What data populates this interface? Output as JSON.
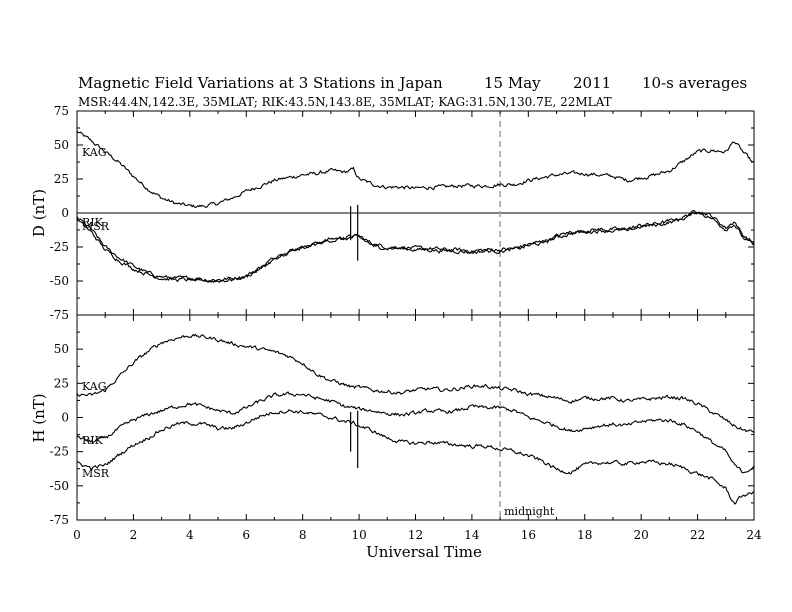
{
  "header": {
    "title": "Magnetic Field Variations at 3 Stations in Japan",
    "date": "15  May",
    "year": "2011",
    "averaging": "10-s averages",
    "subtitle": "MSR:44.4N,142.3E, 35MLAT;   RIK:43.5N,143.8E, 35MLAT;   KAG:31.5N,130.7E, 22MLAT"
  },
  "chart_data": [
    {
      "type": "line",
      "panel": "top",
      "ylabel": "D (nT)",
      "xlabel": "",
      "xlim": [
        0,
        24
      ],
      "ylim": [
        -75,
        75
      ],
      "yticks": [
        "75",
        "50",
        "25",
        "0",
        "-25",
        "-50",
        "-75"
      ],
      "zero_line": true,
      "series": [
        {
          "name": "KAG",
          "x": [
            0,
            0.5,
            1,
            1.5,
            2,
            2.5,
            3,
            3.5,
            4,
            4.5,
            5,
            5.5,
            6,
            6.5,
            7,
            7.5,
            8,
            8.5,
            9,
            9.5,
            9.8,
            10,
            10.5,
            11,
            11.5,
            12,
            12.5,
            13,
            13.5,
            14,
            14.5,
            15,
            15.5,
            16,
            16.5,
            17,
            17.5,
            18,
            18.5,
            19,
            19.5,
            20,
            20.5,
            21,
            21.5,
            22,
            22.5,
            23,
            23.3,
            23.6,
            24
          ],
          "y": [
            60,
            53,
            45,
            37,
            27,
            18,
            11,
            7,
            5,
            5,
            7,
            11,
            16,
            20,
            24,
            26,
            28,
            29,
            31,
            30,
            32,
            25,
            21,
            19,
            19,
            18,
            19,
            19,
            20,
            20,
            20,
            21,
            21,
            24,
            26,
            28,
            29,
            29,
            28,
            27,
            24,
            26,
            28,
            31,
            38,
            45,
            46,
            45,
            53,
            45,
            36
          ]
        },
        {
          "name": "RIK",
          "x": [
            0,
            0.5,
            1,
            1.5,
            2,
            2.5,
            3,
            3.5,
            4,
            4.5,
            5,
            5.5,
            6,
            6.5,
            7,
            7.5,
            8,
            8.5,
            9,
            9.5,
            9.8,
            10,
            10.5,
            11,
            11.5,
            12,
            12.5,
            13,
            13.5,
            14,
            14.5,
            15,
            15.5,
            16,
            16.5,
            17,
            17.5,
            18,
            18.5,
            19,
            19.5,
            20,
            20.5,
            21,
            21.5,
            22,
            22.5,
            23,
            23.3,
            23.6,
            24
          ],
          "y": [
            -3,
            -12,
            -25,
            -33,
            -39,
            -44,
            -47,
            -48,
            -48,
            -49,
            -49,
            -48,
            -46,
            -40,
            -33,
            -28,
            -25,
            -22,
            -19,
            -18,
            -17,
            -17,
            -23,
            -25,
            -25,
            -26,
            -26,
            -27,
            -27,
            -28,
            -27,
            -27,
            -26,
            -23,
            -21,
            -17,
            -14,
            -13,
            -12,
            -12,
            -12,
            -9,
            -8,
            -6,
            -3,
            2,
            -2,
            -11,
            -6,
            -16,
            -22
          ]
        },
        {
          "name": "MSR",
          "x": [
            0,
            0.5,
            1,
            1.5,
            2,
            2.5,
            3,
            3.5,
            4,
            4.5,
            5,
            5.5,
            6,
            6.5,
            7,
            7.5,
            8,
            8.5,
            9,
            9.5,
            9.8,
            10,
            10.5,
            11,
            11.5,
            12,
            12.5,
            13,
            13.5,
            14,
            14.5,
            15,
            15.5,
            16,
            16.5,
            17,
            17.5,
            18,
            18.5,
            19,
            19.5,
            20,
            20.5,
            21,
            21.5,
            22,
            22.5,
            23,
            23.3,
            23.6,
            24
          ],
          "y": [
            -5,
            -14,
            -27,
            -35,
            -41,
            -45,
            -48,
            -49,
            -49,
            -50,
            -50,
            -49,
            -47,
            -41,
            -34,
            -29,
            -26,
            -23,
            -20,
            -19,
            -18,
            -18,
            -24,
            -26,
            -26,
            -27,
            -27,
            -28,
            -28,
            -29,
            -28,
            -28,
            -27,
            -24,
            -22,
            -18,
            -15,
            -14,
            -13,
            -13,
            -13,
            -10,
            -9,
            -7,
            -4,
            1,
            -4,
            -12,
            -8,
            -18,
            -24
          ]
        }
      ]
    },
    {
      "type": "line",
      "panel": "bottom",
      "ylabel": "H (nT)",
      "xlabel": "Universal Time",
      "xlim": [
        0,
        24
      ],
      "ylim": [
        -75,
        75
      ],
      "xticks": [
        "0",
        "2",
        "4",
        "6",
        "8",
        "10",
        "12",
        "14",
        "16",
        "18",
        "20",
        "22",
        "24"
      ],
      "yticks": [
        "50",
        "25",
        "0",
        "-25",
        "-50",
        "-75"
      ],
      "vline": {
        "x": 15,
        "label": "midnight"
      },
      "series": [
        {
          "name": "KAG",
          "x": [
            0,
            0.5,
            1,
            1.5,
            2,
            2.5,
            3,
            3.5,
            4,
            4.5,
            5,
            5.5,
            6,
            6.5,
            7,
            7.5,
            8,
            8.5,
            9,
            9.5,
            9.8,
            10,
            10.5,
            11,
            11.5,
            12,
            12.5,
            13,
            13.5,
            14,
            14.5,
            15,
            15.5,
            16,
            16.5,
            17,
            17.5,
            18,
            18.5,
            19,
            19.5,
            20,
            20.5,
            21,
            21.5,
            22,
            22.5,
            23,
            23.3,
            23.6,
            24
          ],
          "y": [
            17,
            16,
            20,
            30,
            40,
            48,
            55,
            58,
            60,
            59,
            57,
            54,
            52,
            50,
            48,
            45,
            40,
            32,
            27,
            24,
            22,
            22,
            20,
            19,
            18,
            20,
            21,
            20,
            21,
            23,
            23,
            21,
            20,
            17,
            16,
            14,
            12,
            14,
            14,
            14,
            12,
            13,
            14,
            15,
            14,
            10,
            4,
            -2,
            -6,
            -9,
            -11
          ]
        },
        {
          "name": "RIK",
          "x": [
            0,
            0.5,
            1,
            1.5,
            2,
            2.5,
            3,
            3.5,
            4,
            4.5,
            5,
            5.5,
            6,
            6.5,
            7,
            7.5,
            8,
            8.5,
            9,
            9.5,
            9.8,
            10,
            10.5,
            11,
            11.5,
            12,
            12.5,
            13,
            13.5,
            14,
            14.5,
            15,
            15.5,
            16,
            16.5,
            17,
            17.5,
            18,
            18.5,
            19,
            19.5,
            20,
            20.5,
            21,
            21.5,
            22,
            22.5,
            23,
            23.3,
            23.6,
            24
          ],
          "y": [
            -14,
            -18,
            -15,
            -8,
            -2,
            2,
            5,
            8,
            10,
            8,
            5,
            3,
            7,
            12,
            16,
            17,
            17,
            14,
            12,
            8,
            7,
            6,
            5,
            3,
            2,
            3,
            5,
            4,
            5,
            8,
            7,
            7,
            5,
            0,
            -3,
            -6,
            -10,
            -8,
            -6,
            -5,
            -6,
            -3,
            -2,
            -2,
            -5,
            -10,
            -18,
            -25,
            -35,
            -40,
            -36
          ]
        },
        {
          "name": "MSR",
          "x": [
            0,
            0.5,
            1,
            1.5,
            2,
            2.5,
            3,
            3.5,
            4,
            4.5,
            5,
            5.5,
            6,
            6.5,
            7,
            7.5,
            8,
            8.5,
            9,
            9.5,
            9.8,
            10,
            10.5,
            11,
            11.5,
            12,
            12.5,
            13,
            13.5,
            14,
            14.5,
            15,
            15.5,
            16,
            16.5,
            17,
            17.5,
            18,
            18.5,
            19,
            19.5,
            20,
            20.5,
            21,
            21.5,
            22,
            22.5,
            23,
            23.3,
            23.6,
            24
          ],
          "y": [
            -33,
            -37,
            -35,
            -27,
            -20,
            -15,
            -9,
            -5,
            -4,
            -5,
            -8,
            -8,
            -4,
            1,
            4,
            5,
            4,
            2,
            0,
            -3,
            -4,
            -6,
            -10,
            -15,
            -18,
            -19,
            -18,
            -19,
            -20,
            -21,
            -21,
            -23,
            -25,
            -28,
            -32,
            -38,
            -40,
            -35,
            -33,
            -33,
            -34,
            -32,
            -33,
            -34,
            -37,
            -41,
            -45,
            -52,
            -63,
            -57,
            -55
          ]
        }
      ],
      "spikes": [
        {
          "x": 9.7,
          "y_from": -25,
          "y_to": 4
        },
        {
          "x": 9.95,
          "y_from": -37,
          "y_to": 5
        }
      ]
    }
  ],
  "d_spikes": [
    {
      "x": 9.7,
      "y_from": -20,
      "y_to": 5
    },
    {
      "x": 9.95,
      "y_from": -35,
      "y_to": 6
    }
  ],
  "colors": {
    "line": "#000000",
    "midnight_line": "#a6a6a6"
  }
}
